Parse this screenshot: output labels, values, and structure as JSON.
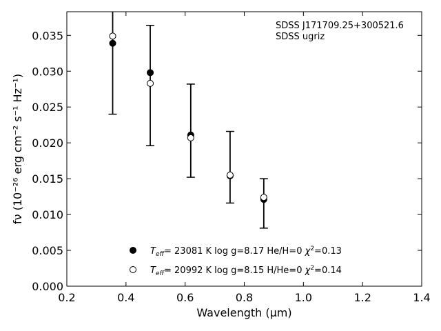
{
  "chart_data": {
    "type": "scatter",
    "xlabel": "Wavelength (μm)",
    "ylabel": "fν (10⁻²⁶ erg cm⁻² s⁻¹ Hz⁻¹)",
    "xlim": [
      0.2,
      1.4
    ],
    "ylim": [
      0.0,
      0.0383
    ],
    "x_ticks": [
      0.2,
      0.4,
      0.6,
      0.8,
      1.0,
      1.2,
      1.4
    ],
    "x_tick_labels": [
      "0.2",
      "0.4",
      "0.6",
      "0.8",
      "1.0",
      "1.2",
      "1.4"
    ],
    "y_ticks": [
      0.0,
      0.005,
      0.01,
      0.015,
      0.02,
      0.025,
      0.03,
      0.035
    ],
    "y_tick_labels": [
      "0.000",
      "0.005",
      "0.010",
      "0.015",
      "0.020",
      "0.025",
      "0.030",
      "0.035"
    ],
    "grid": false,
    "annotations": [
      "SDSS J171709.25+300521.6",
      "SDSS ugriz"
    ],
    "observed": {
      "x": [
        0.355,
        0.482,
        0.619,
        0.752,
        0.866
      ],
      "y": [
        0.0339,
        0.0298,
        0.0211,
        0.0155,
        0.0121
      ],
      "yerr_low": [
        0.024,
        0.0196,
        0.0152,
        0.0116,
        0.0081
      ],
      "yerr_high": [
        0.044,
        0.0364,
        0.0282,
        0.0216,
        0.015
      ]
    },
    "series": [
      {
        "marker": "filled",
        "name": "Teff= 23081 K  log g=8.17  He/H=0  χ²=0.13",
        "x": [
          0.355,
          0.482,
          0.619,
          0.752,
          0.866
        ],
        "values": [
          0.0339,
          0.0298,
          0.0211,
          0.0154,
          0.0121
        ]
      },
      {
        "marker": "open",
        "name": "Teff= 20992 K  log g=8.15  H/He=0  χ²=0.14",
        "x": [
          0.355,
          0.482,
          0.619,
          0.752,
          0.866
        ],
        "values": [
          0.0349,
          0.0283,
          0.0207,
          0.0155,
          0.0124
        ]
      }
    ],
    "legend": [
      {
        "marker": "filled",
        "teff": "23081",
        "logg": "8.17",
        "comp": "He/H=0",
        "chi2": "0.13"
      },
      {
        "marker": "open",
        "teff": "20992",
        "logg": "8.15",
        "comp": "H/He=0",
        "chi2": "0.14"
      }
    ],
    "legend_position": "bottom-center"
  }
}
